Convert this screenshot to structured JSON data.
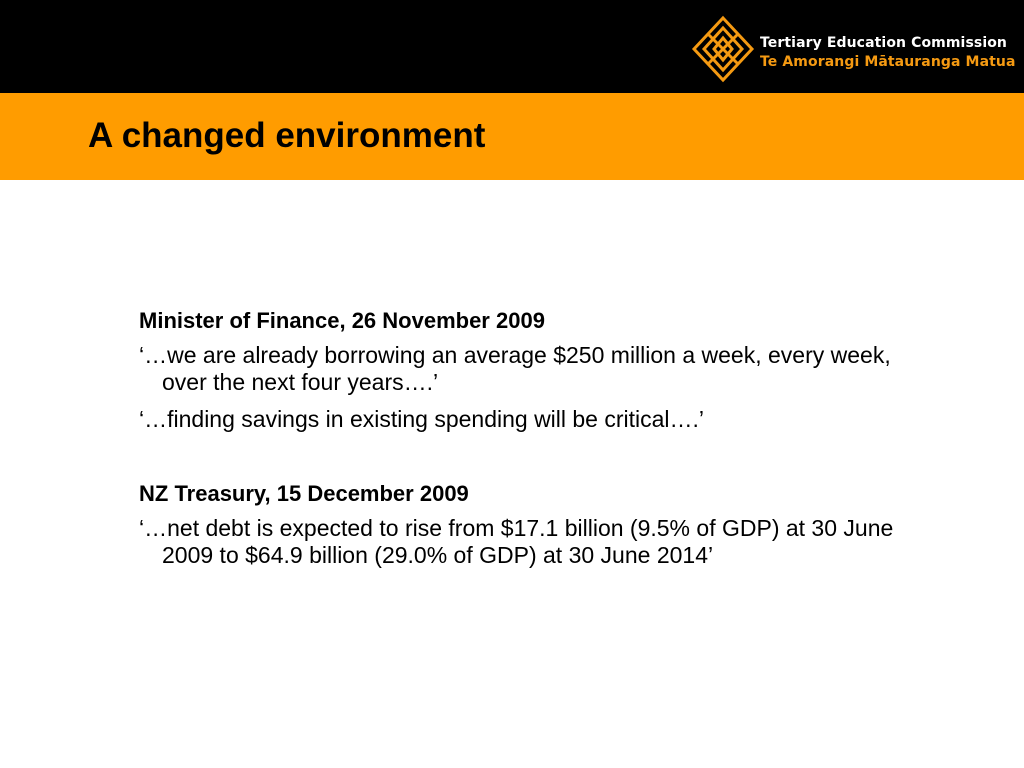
{
  "header": {
    "org_name_en": "Tertiary Education Commission",
    "org_name_mi": "Te Amorangi Mātauranga Matua",
    "logo_icon": "tec-diamond-logo-icon",
    "colors": {
      "top_bar": "#000000",
      "title_band": "#ff9c00",
      "logo_orange": "#f59a12"
    }
  },
  "slide": {
    "title": "A changed environment"
  },
  "sections": [
    {
      "heading": "Minister of Finance, 26 November 2009",
      "quotes": [
        "‘…we are already borrowing an average $250 million a week, every week, over the next four years….’",
        "‘…finding savings in existing spending will be critical….’"
      ]
    },
    {
      "heading": "NZ Treasury, 15 December 2009",
      "quotes": [
        "‘…net debt is expected to rise from $17.1 billion (9.5% of GDP) at 30 June 2009 to $64.9 billion (29.0% of GDP) at 30 June 2014’"
      ]
    }
  ]
}
